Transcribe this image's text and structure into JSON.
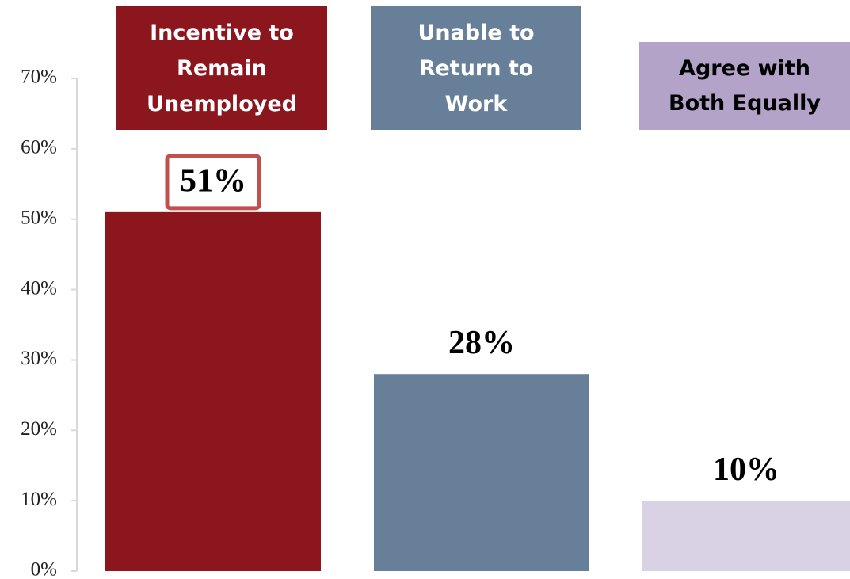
{
  "chart_data": {
    "type": "bar",
    "categories": [
      "Incentive to Remain Unemployed",
      "Unable to Return to Work",
      "Agree with Both Equally"
    ],
    "values": [
      51,
      28,
      10
    ],
    "value_labels": [
      "51%",
      "28%",
      "10%"
    ],
    "colors": [
      "#8c161d",
      "#687f99",
      "#d9d1e4"
    ],
    "header_colors": [
      "#8c161d",
      "#687f99",
      "#b3a3c9"
    ],
    "ylim": [
      0,
      70
    ],
    "yticks": [
      {
        "value": 0,
        "label": "0%"
      },
      {
        "value": 10,
        "label": "10%"
      },
      {
        "value": 20,
        "label": "20%"
      },
      {
        "value": 30,
        "label": "30%"
      },
      {
        "value": 40,
        "label": "40%"
      },
      {
        "value": 50,
        "label": "50%"
      },
      {
        "value": 60,
        "label": "60%"
      },
      {
        "value": 70,
        "label": "70%"
      }
    ]
  }
}
